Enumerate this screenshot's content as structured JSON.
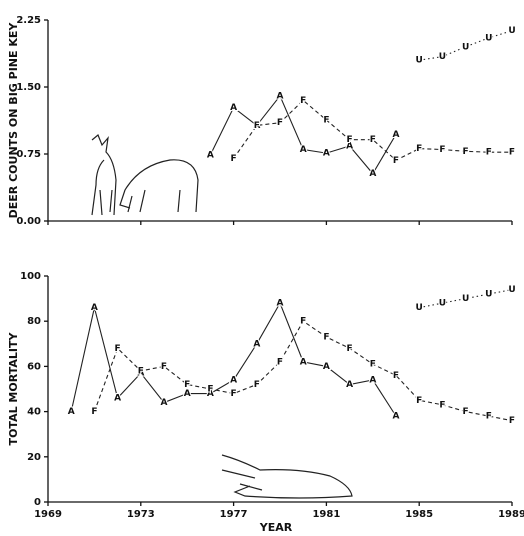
{
  "chart_data": [
    {
      "type": "line",
      "ylabel": "DEER COUNTS ON BIG PINE KEY",
      "xlim": [
        1969,
        1989
      ],
      "xticks": [
        1969,
        1973,
        1977,
        1981,
        1985,
        1989
      ],
      "show_xtick_labels": false,
      "ylim": [
        0,
        2.25
      ],
      "yticks": [
        {
          "value": 0,
          "label": "0.00"
        },
        {
          "value": 0.75,
          "label": "0.75"
        },
        {
          "value": 1.5,
          "label": "1.50"
        },
        {
          "value": 2.25,
          "label": "2.25"
        }
      ],
      "series": [
        {
          "marker": "A",
          "line_style": "solid",
          "color": "#222222",
          "x": [
            1976,
            1977,
            1978,
            1979,
            1980,
            1981,
            1982,
            1983,
            1984
          ],
          "values": [
            0.74,
            1.27,
            1.07,
            1.4,
            0.8,
            0.76,
            0.84,
            0.53,
            0.97
          ]
        },
        {
          "marker": "F",
          "line_style": "dashed",
          "color": "#222222",
          "x": [
            1977,
            1978,
            1979,
            1980,
            1981,
            1982,
            1983,
            1984,
            1985,
            1986,
            1987,
            1988,
            1989
          ],
          "values": [
            0.7,
            1.07,
            1.1,
            1.35,
            1.13,
            0.91,
            0.91,
            0.68,
            0.81,
            0.8,
            0.78,
            0.77,
            0.77
          ]
        },
        {
          "marker": "U",
          "line_style": "dotted",
          "color": "#222222",
          "x": [
            1985,
            1986,
            1987,
            1988,
            1989
          ],
          "values": [
            1.8,
            1.84,
            1.95,
            2.05,
            2.13
          ]
        }
      ]
    },
    {
      "type": "line",
      "ylabel": "TOTAL MORTALITY",
      "xlabel": "YEAR",
      "xlim": [
        1969,
        1989
      ],
      "xticks": [
        1969,
        1973,
        1977,
        1981,
        1985,
        1989
      ],
      "show_xtick_labels": true,
      "ylim": [
        0,
        100
      ],
      "yticks": [
        0,
        20,
        40,
        60,
        80,
        100
      ],
      "series": [
        {
          "marker": "A",
          "line_style": "solid",
          "color": "#222222",
          "x": [
            1970,
            1971,
            1972,
            1973,
            1974,
            1975,
            1976,
            1977,
            1978,
            1979,
            1980,
            1981,
            1982,
            1983,
            1984
          ],
          "values": [
            40,
            86,
            46,
            57,
            44,
            48,
            48,
            54,
            70,
            88,
            62,
            60,
            52,
            54,
            38
          ]
        },
        {
          "marker": "F",
          "line_style": "dashed",
          "color": "#222222",
          "x": [
            1971,
            1972,
            1973,
            1974,
            1975,
            1976,
            1977,
            1978,
            1979,
            1980,
            1981,
            1982,
            1983,
            1984,
            1985,
            1986,
            1987,
            1988,
            1989
          ],
          "values": [
            40,
            68,
            58,
            60,
            52,
            50,
            48,
            52,
            62,
            80,
            73,
            68,
            61,
            56,
            45,
            43,
            40,
            38,
            36
          ]
        },
        {
          "marker": "U",
          "line_style": "dotted",
          "color": "#222222",
          "x": [
            1985,
            1986,
            1987,
            1988,
            1989
          ],
          "values": [
            86,
            88,
            90,
            92,
            94
          ]
        }
      ]
    }
  ]
}
